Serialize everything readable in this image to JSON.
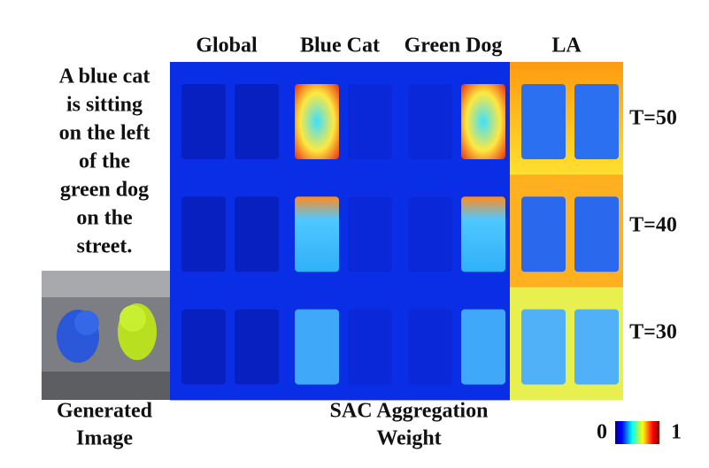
{
  "columns": [
    "Global",
    "Blue Cat",
    "Green Dog",
    "LA"
  ],
  "rows": [
    "T=50",
    "T=40",
    "T=30"
  ],
  "prompt_lines": [
    "A blue cat",
    "is sitting",
    "on the left",
    "of the",
    "green dog",
    "on the",
    "street."
  ],
  "image_caption": [
    "Generated",
    "Image"
  ],
  "figure_caption": [
    "SAC Aggregation",
    "Weight"
  ],
  "colorbar": {
    "min_label": "0",
    "max_label": "1"
  }
}
